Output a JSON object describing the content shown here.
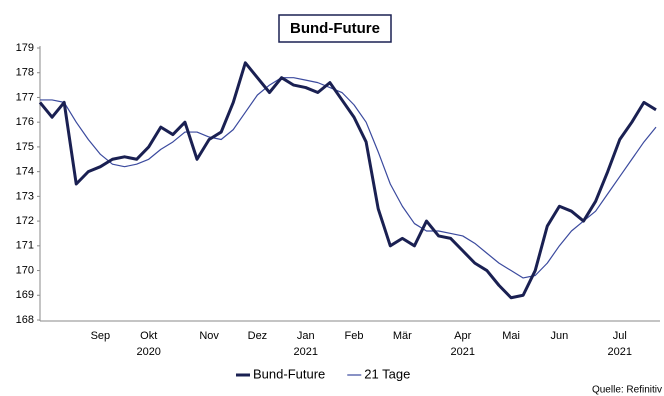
{
  "chart_data": {
    "type": "line",
    "title": "Bund-Future",
    "categories": [
      null,
      null,
      null,
      null,
      null,
      "Sep",
      null,
      null,
      null,
      "Okt",
      null,
      null,
      null,
      null,
      "Nov",
      null,
      null,
      null,
      "Dez",
      null,
      null,
      null,
      "Jan",
      null,
      null,
      null,
      "Feb",
      null,
      null,
      null,
      "Mär",
      null,
      null,
      null,
      null,
      "Apr",
      null,
      null,
      null,
      "Mai",
      null,
      null,
      null,
      "Jun",
      null,
      null,
      null,
      null,
      "Jul",
      null,
      null,
      null
    ],
    "years": [
      null,
      null,
      null,
      null,
      null,
      null,
      null,
      null,
      null,
      "2020",
      null,
      null,
      null,
      null,
      null,
      null,
      null,
      null,
      null,
      null,
      null,
      null,
      "2021",
      null,
      null,
      null,
      null,
      null,
      null,
      null,
      null,
      null,
      null,
      null,
      null,
      "2021",
      null,
      null,
      null,
      null,
      null,
      null,
      null,
      null,
      null,
      null,
      null,
      null,
      "2021",
      null,
      null,
      null
    ],
    "series": [
      {
        "name": "Bund-Future",
        "color": "#1a2052",
        "values": [
          176.8,
          176.2,
          176.8,
          173.5,
          174.0,
          174.2,
          174.5,
          174.6,
          174.5,
          175.0,
          175.8,
          175.5,
          176.0,
          174.5,
          175.3,
          175.6,
          176.8,
          178.4,
          177.8,
          177.2,
          177.8,
          177.5,
          177.4,
          177.2,
          177.6,
          176.9,
          176.2,
          175.2,
          172.5,
          171.0,
          171.3,
          171.0,
          172.0,
          171.4,
          171.3,
          170.8,
          170.3,
          170.0,
          169.4,
          168.9,
          169.0,
          170.0,
          171.8,
          172.6,
          172.4,
          172.0,
          172.8,
          174.0,
          175.3,
          176.0,
          176.8,
          176.5
        ]
      },
      {
        "name": "21 Tage",
        "color": "#3b4a9e",
        "values": [
          176.9,
          176.9,
          176.8,
          176.0,
          175.3,
          174.7,
          174.3,
          174.2,
          174.3,
          174.5,
          174.9,
          175.2,
          175.6,
          175.6,
          175.4,
          175.3,
          175.7,
          176.4,
          177.1,
          177.5,
          177.8,
          177.8,
          177.7,
          177.6,
          177.4,
          177.2,
          176.7,
          176.0,
          174.8,
          173.5,
          172.6,
          171.9,
          171.6,
          171.6,
          171.5,
          171.4,
          171.1,
          170.7,
          170.3,
          170.0,
          169.7,
          169.8,
          170.3,
          171.0,
          171.6,
          172.0,
          172.4,
          173.1,
          173.8,
          174.5,
          175.2,
          175.8
        ]
      }
    ],
    "ylim": [
      168,
      179
    ],
    "yticks": [
      168,
      169,
      170,
      171,
      172,
      173,
      174,
      175,
      176,
      177,
      178,
      179
    ],
    "source": "Quelle: Refinitiv"
  }
}
